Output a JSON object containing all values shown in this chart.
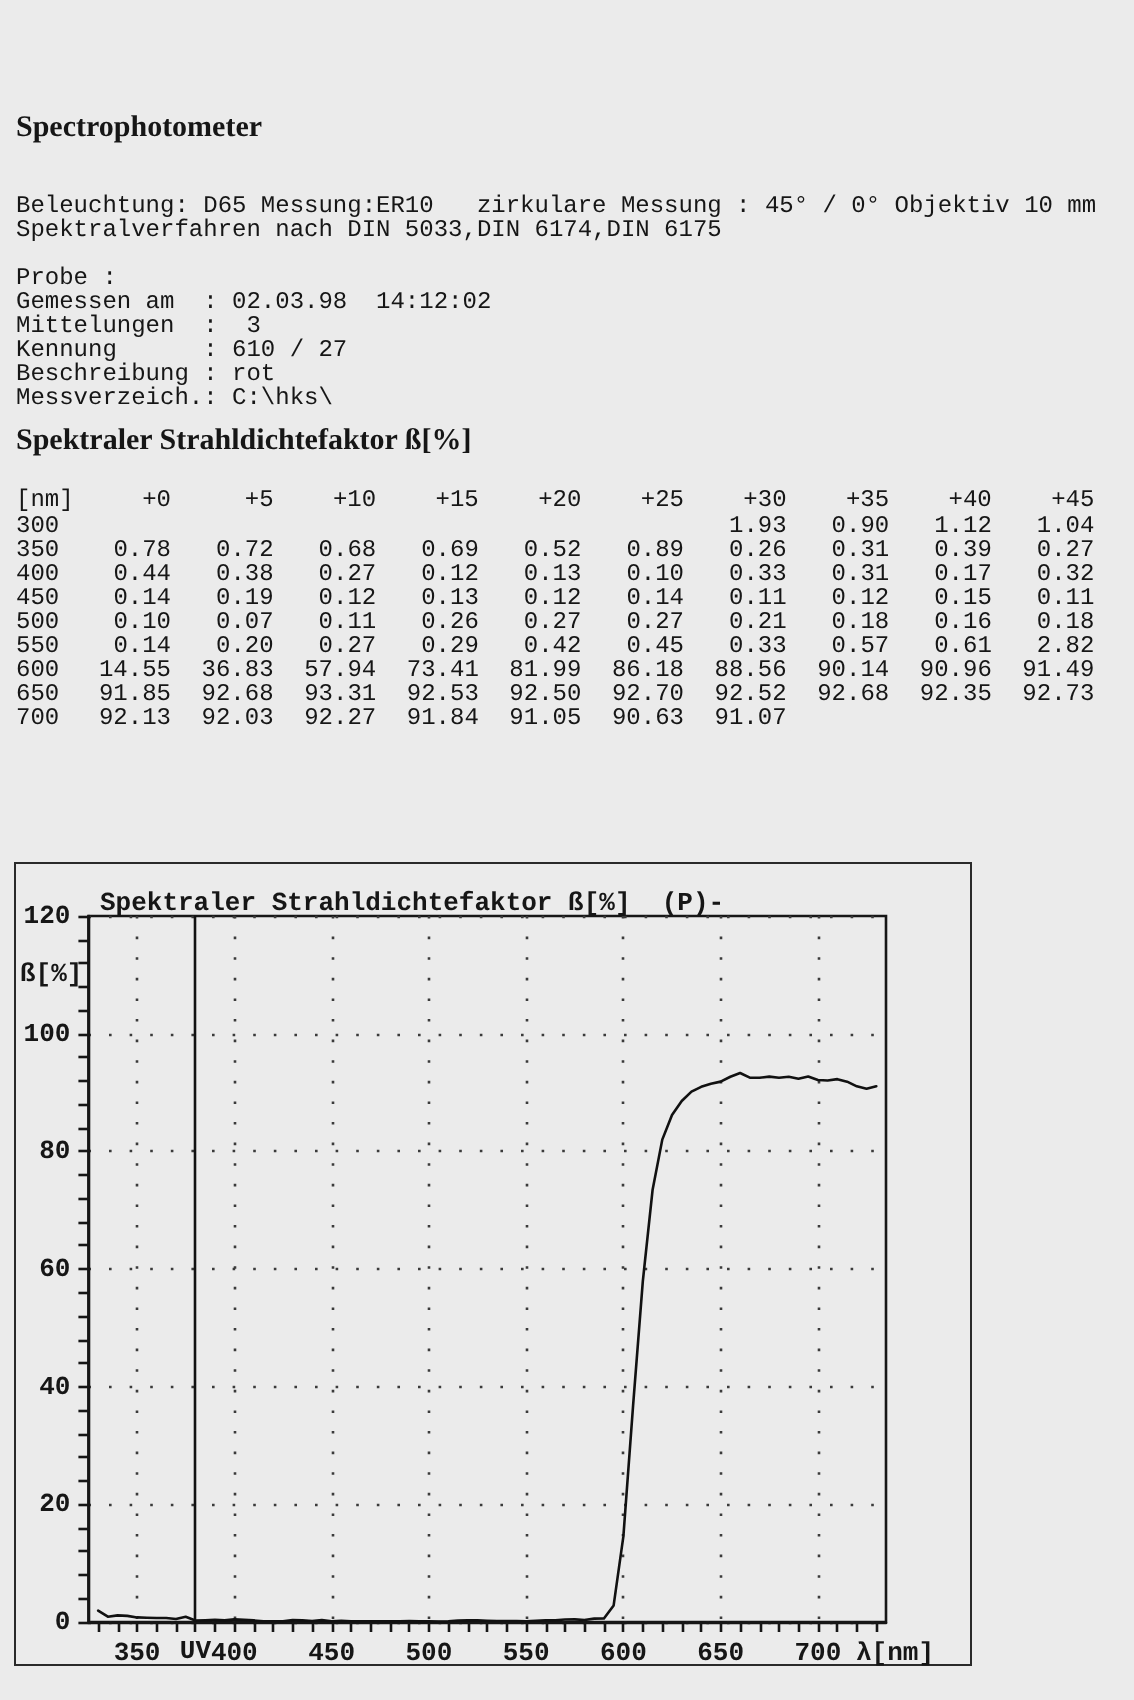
{
  "chart_data": [
    {
      "type": "heatmap",
      "title": "Spektraler Strahldichtefaktor ß[%]",
      "ylabel": "[nm]",
      "annotations": [
        "Spectrophotometer",
        "Beleuchtung: D65 Messung:ER10   zirkulare Messung : 45° / 0° Objektiv 10 mm",
        "Spektralverfahren nach DIN 5033,DIN 6174,DIN 6175",
        "Probe :",
        "Gemessen am  : 02.03.98  14:12:02",
        "Mittelungen  :  3",
        "Kennung      : 610 / 27",
        "Beschreibung : rot",
        "Messverzeich.: C:\\hks\\"
      ],
      "categories": [
        "+0",
        "+5",
        "+10",
        "+15",
        "+20",
        "+25",
        "+30",
        "+35",
        "+40",
        "+45"
      ],
      "y_categories": [
        "300",
        "350",
        "400",
        "450",
        "500",
        "550",
        "600",
        "650",
        "700"
      ],
      "cells": [
        [
          null,
          null,
          null,
          null,
          null,
          null,
          1.93,
          0.9,
          1.12,
          1.04
        ],
        [
          0.78,
          0.72,
          0.68,
          0.69,
          0.52,
          0.89,
          0.26,
          0.31,
          0.39,
          0.27
        ],
        [
          0.44,
          0.38,
          0.27,
          0.12,
          0.13,
          0.1,
          0.33,
          0.31,
          0.17,
          0.32
        ],
        [
          0.14,
          0.19,
          0.12,
          0.13,
          0.12,
          0.14,
          0.11,
          0.12,
          0.15,
          0.11
        ],
        [
          0.1,
          0.07,
          0.11,
          0.26,
          0.27,
          0.27,
          0.21,
          0.18,
          0.16,
          0.18
        ],
        [
          0.14,
          0.2,
          0.27,
          0.29,
          0.42,
          0.45,
          0.33,
          0.57,
          0.61,
          2.82
        ],
        [
          14.55,
          36.83,
          57.94,
          73.41,
          81.99,
          86.18,
          88.56,
          90.14,
          90.96,
          91.49
        ],
        [
          91.85,
          92.68,
          93.31,
          92.53,
          92.5,
          92.7,
          92.52,
          92.68,
          92.35,
          92.73
        ],
        [
          92.13,
          92.03,
          92.27,
          91.84,
          91.05,
          90.63,
          91.07,
          null,
          null,
          null
        ]
      ],
      "cell_labels": [
        [
          null,
          null,
          null,
          null,
          null,
          null,
          "1.93",
          "0.90",
          "1.12",
          "1.04"
        ],
        [
          "0.78",
          "0.72",
          "0.68",
          "0.69",
          "0.52",
          "0.89",
          "0.26",
          "0.31",
          "0.39",
          "0.27"
        ],
        [
          "0.44",
          "0.38",
          "0.27",
          "0.12",
          "0.13",
          "0.10",
          "0.33",
          "0.31",
          "0.17",
          "0.32"
        ],
        [
          "0.14",
          "0.19",
          "0.12",
          "0.13",
          "0.12",
          "0.14",
          "0.11",
          "0.12",
          "0.15",
          "0.11"
        ],
        [
          "0.10",
          "0.07",
          "0.11",
          "0.26",
          "0.27",
          "0.27",
          "0.21",
          "0.18",
          "0.16",
          "0.18"
        ],
        [
          "0.14",
          "0.20",
          "0.27",
          "0.29",
          "0.42",
          "0.45",
          "0.33",
          "0.57",
          "0.61",
          "2.82"
        ],
        [
          "14.55",
          "36.83",
          "57.94",
          "73.41",
          "81.99",
          "86.18",
          "88.56",
          "90.14",
          "90.96",
          "91.49"
        ],
        [
          "91.85",
          "92.68",
          "93.31",
          "92.53",
          "92.50",
          "92.70",
          "92.52",
          "92.68",
          "92.35",
          "92.73"
        ],
        [
          "92.13",
          "92.03",
          "92.27",
          "91.84",
          "91.05",
          "90.63",
          "91.07",
          null,
          null,
          null
        ]
      ],
      "data_labels": true
    },
    {
      "type": "line",
      "title": "Spektraler Strahldichtefaktor ß[%]  (P)-",
      "xlabel": "λ[nm]",
      "ylabel": "ß[%]",
      "x": [
        330,
        335,
        340,
        345,
        350,
        355,
        360,
        365,
        370,
        375,
        380,
        385,
        390,
        395,
        400,
        405,
        410,
        415,
        420,
        425,
        430,
        435,
        440,
        445,
        450,
        455,
        460,
        465,
        470,
        475,
        480,
        485,
        490,
        495,
        500,
        505,
        510,
        515,
        520,
        525,
        530,
        535,
        540,
        545,
        550,
        555,
        560,
        565,
        570,
        575,
        580,
        585,
        590,
        595,
        600,
        605,
        610,
        615,
        620,
        625,
        630,
        635,
        640,
        645,
        650,
        655,
        660,
        665,
        670,
        675,
        680,
        685,
        690,
        695,
        700,
        705,
        710,
        715,
        720,
        725,
        730
      ],
      "values": [
        1.93,
        0.9,
        1.12,
        1.04,
        0.78,
        0.72,
        0.68,
        0.69,
        0.52,
        0.89,
        0.26,
        0.31,
        0.39,
        0.27,
        0.44,
        0.38,
        0.27,
        0.12,
        0.13,
        0.1,
        0.33,
        0.31,
        0.17,
        0.32,
        0.14,
        0.19,
        0.12,
        0.13,
        0.12,
        0.14,
        0.11,
        0.12,
        0.15,
        0.11,
        0.1,
        0.07,
        0.11,
        0.26,
        0.27,
        0.27,
        0.21,
        0.18,
        0.16,
        0.18,
        0.14,
        0.2,
        0.27,
        0.29,
        0.42,
        0.45,
        0.33,
        0.57,
        0.61,
        2.82,
        14.55,
        36.83,
        57.94,
        73.41,
        81.99,
        86.18,
        88.56,
        90.14,
        90.96,
        91.49,
        91.85,
        92.68,
        93.31,
        92.53,
        92.5,
        92.7,
        92.52,
        92.68,
        92.35,
        92.73,
        92.13,
        92.03,
        92.27,
        91.84,
        91.05,
        90.63,
        91.07
      ],
      "color": "#111111",
      "xlim": [
        325,
        735
      ],
      "ylim": [
        0,
        120
      ],
      "xticks": [
        {
          "value": 330,
          "label": null
        },
        {
          "value": 340,
          "label": null
        },
        350,
        {
          "value": 360,
          "label": null
        },
        {
          "value": 370,
          "label": null
        },
        {
          "value": 380,
          "label": null
        },
        {
          "value": 390,
          "label": null
        },
        400,
        {
          "value": 410,
          "label": null
        },
        {
          "value": 420,
          "label": null
        },
        {
          "value": 430,
          "label": null
        },
        {
          "value": 440,
          "label": null
        },
        450,
        {
          "value": 460,
          "label": null
        },
        {
          "value": 470,
          "label": null
        },
        {
          "value": 480,
          "label": null
        },
        {
          "value": 490,
          "label": null
        },
        500,
        {
          "value": 510,
          "label": null
        },
        {
          "value": 520,
          "label": null
        },
        {
          "value": 530,
          "label": null
        },
        {
          "value": 540,
          "label": null
        },
        550,
        {
          "value": 560,
          "label": null
        },
        {
          "value": 570,
          "label": null
        },
        {
          "value": 580,
          "label": null
        },
        {
          "value": 590,
          "label": null
        },
        600,
        {
          "value": 610,
          "label": null
        },
        {
          "value": 620,
          "label": null
        },
        {
          "value": 630,
          "label": null
        },
        {
          "value": 640,
          "label": null
        },
        650,
        {
          "value": 660,
          "label": null
        },
        {
          "value": 670,
          "label": null
        },
        {
          "value": 680,
          "label": null
        },
        {
          "value": 690,
          "label": null
        },
        700,
        {
          "value": 710,
          "label": null
        },
        {
          "value": 720,
          "label": null
        },
        {
          "value": 730,
          "label": null
        }
      ],
      "yticks": [
        0,
        {
          "value": 4,
          "label": null
        },
        {
          "value": 8,
          "label": null
        },
        {
          "value": 12,
          "label": null
        },
        {
          "value": 16,
          "label": null
        },
        20,
        {
          "value": 24,
          "label": null
        },
        {
          "value": 28,
          "label": null
        },
        {
          "value": 32,
          "label": null
        },
        {
          "value": 36,
          "label": null
        },
        40,
        {
          "value": 44,
          "label": null
        },
        {
          "value": 48,
          "label": null
        },
        {
          "value": 52,
          "label": null
        },
        {
          "value": 56,
          "label": null
        },
        60,
        {
          "value": 64,
          "label": null
        },
        {
          "value": 68,
          "label": null
        },
        {
          "value": 72,
          "label": null
        },
        {
          "value": 76,
          "label": null
        },
        80,
        {
          "value": 84,
          "label": null
        },
        {
          "value": 88,
          "label": null
        },
        {
          "value": 92,
          "label": null
        },
        {
          "value": 96,
          "label": null
        },
        100,
        {
          "value": 104,
          "label": null
        },
        {
          "value": 108,
          "label": null
        },
        {
          "value": 112,
          "label": null
        },
        {
          "value": 116,
          "label": null
        },
        120
      ],
      "ref_lines": [
        {
          "axis": "x",
          "value": 380,
          "label": "UV",
          "color": "#111111"
        }
      ],
      "grid": true,
      "marker": "none",
      "line_style": "solid"
    }
  ]
}
